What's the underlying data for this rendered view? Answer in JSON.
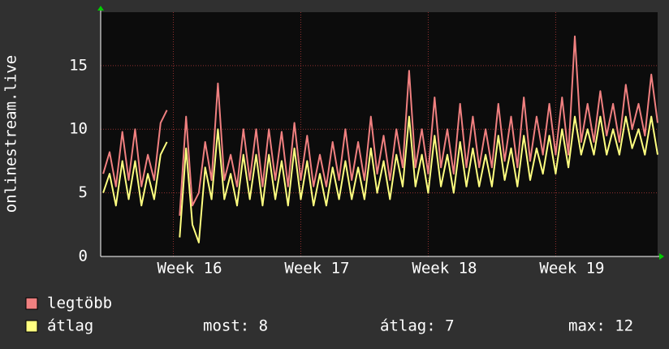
{
  "chart_data": {
    "type": "line",
    "y_label": "onlinestream.live",
    "x": [
      15.45,
      15.5,
      15.55,
      15.6,
      15.65,
      15.7,
      15.75,
      15.8,
      15.85,
      15.9,
      15.95,
      16.0,
      16.05,
      16.1,
      16.15,
      16.2,
      16.25,
      16.3,
      16.35,
      16.4,
      16.45,
      16.5,
      16.55,
      16.6,
      16.65,
      16.7,
      16.75,
      16.8,
      16.85,
      16.9,
      16.95,
      17.0,
      17.05,
      17.1,
      17.15,
      17.2,
      17.25,
      17.3,
      17.35,
      17.4,
      17.45,
      17.5,
      17.55,
      17.6,
      17.65,
      17.7,
      17.75,
      17.8,
      17.85,
      17.9,
      17.95,
      18.0,
      18.05,
      18.1,
      18.15,
      18.2,
      18.25,
      18.3,
      18.35,
      18.4,
      18.45,
      18.5,
      18.55,
      18.6,
      18.65,
      18.7,
      18.75,
      18.8,
      18.85,
      18.9,
      18.95,
      19.0,
      19.05,
      19.1,
      19.15,
      19.2,
      19.25,
      19.3,
      19.35,
      19.4,
      19.45,
      19.5,
      19.55,
      19.6,
      19.65,
      19.7,
      19.75,
      19.8
    ],
    "series": [
      {
        "name": "legtöbb",
        "color": "#f08080",
        "values": [
          6.5,
          8.2,
          5.5,
          9.8,
          6,
          10,
          5.5,
          8,
          6,
          10.5,
          11.5,
          null,
          3.2,
          11,
          4,
          5,
          9,
          6,
          13.6,
          6,
          8,
          5.5,
          10,
          6,
          10,
          5.5,
          10,
          6,
          9.8,
          5.5,
          10.5,
          6,
          9.5,
          5.5,
          8,
          5.5,
          9,
          6,
          10,
          6,
          9,
          6,
          11,
          6.5,
          9.5,
          6,
          10,
          7,
          14.6,
          7,
          10,
          6.5,
          12.5,
          7,
          10,
          6.5,
          12,
          7,
          11,
          7,
          10,
          7,
          12,
          7.5,
          11,
          7,
          12.5,
          7.5,
          11,
          8,
          12,
          8,
          12.5,
          8,
          17.3,
          9,
          12,
          9,
          13,
          9.5,
          12,
          9,
          13.5,
          10,
          12,
          9.5,
          14.3,
          10.5
        ]
      },
      {
        "name": "átlag",
        "color": "#ffff80",
        "values": [
          5,
          6.5,
          4,
          7.5,
          4.5,
          7.5,
          4,
          6.5,
          4.5,
          8,
          9,
          null,
          1.5,
          8.5,
          2.5,
          1.1,
          7,
          4.5,
          10,
          4.5,
          6.5,
          4,
          8,
          4.5,
          8,
          4,
          8,
          4.5,
          7.5,
          4,
          8.5,
          4.5,
          7.5,
          4,
          6.5,
          4,
          7,
          4.5,
          7.5,
          4.5,
          7,
          4.5,
          8.5,
          5,
          7.5,
          4.5,
          8,
          5.5,
          11,
          5.5,
          8,
          5,
          9.5,
          5.5,
          8,
          5,
          9,
          5.5,
          8.5,
          5.5,
          8,
          5.5,
          9.5,
          6,
          8.5,
          5.5,
          9.5,
          6,
          8.5,
          6.5,
          9.5,
          6.5,
          10,
          7,
          11,
          8,
          10,
          8,
          11,
          8,
          10,
          8,
          11,
          8.5,
          10,
          8,
          11,
          8
        ]
      }
    ],
    "xlim": [
      15.43,
      19.8
    ],
    "xticks": [
      {
        "value": 16,
        "label": "Week 16"
      },
      {
        "value": 17,
        "label": "Week 17"
      },
      {
        "value": 18,
        "label": "Week 18"
      },
      {
        "value": 19,
        "label": "Week 19"
      }
    ],
    "ylim": [
      0,
      19.2
    ],
    "yticks": [
      0,
      5,
      10,
      15
    ],
    "grid": true,
    "stats": [
      "most: 8",
      "átlag: 7",
      "max: 12"
    ]
  }
}
